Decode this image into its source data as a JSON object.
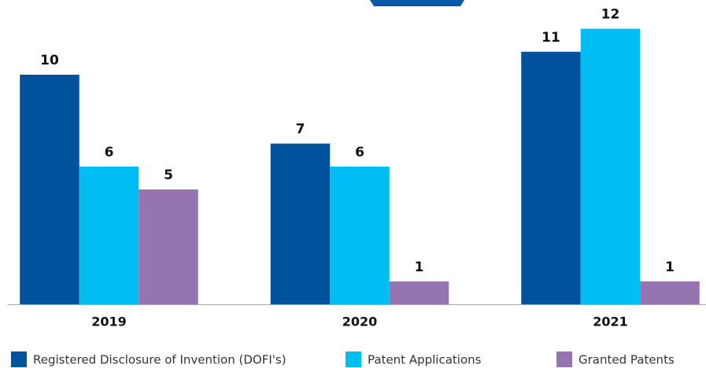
{
  "chart_data": {
    "type": "bar",
    "categories": [
      "2019",
      "2020",
      "2021"
    ],
    "series": [
      {
        "name": "Registered Disclosure of Invention (DOFI's)",
        "color": "#01529c",
        "values": [
          10,
          7,
          11
        ]
      },
      {
        "name": "Patent Applications",
        "color": "#00bdf2",
        "values": [
          6,
          6,
          12
        ]
      },
      {
        "name": "Granted Patents",
        "color": "#9673b1",
        "values": [
          5,
          1,
          1
        ]
      }
    ],
    "ylim": [
      0,
      13
    ]
  }
}
